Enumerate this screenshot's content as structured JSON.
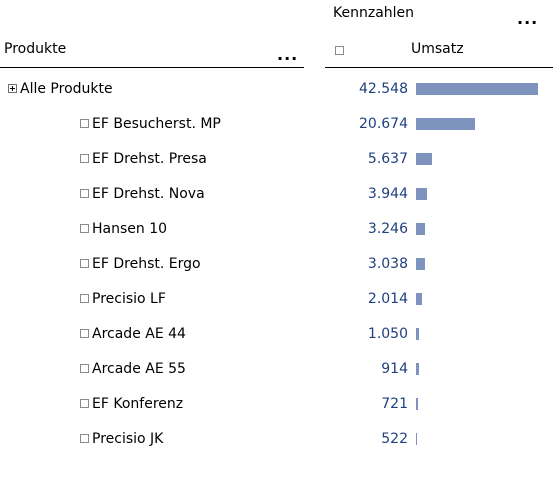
{
  "header": {
    "measures_title": "Kennzahlen",
    "more_menu": "...",
    "dimension_title": "Produkte",
    "dimension_more": "...",
    "measure_label": "Umsatz"
  },
  "colors": {
    "value_text": "#1f3f7f",
    "bar_fill": "#7f93bf"
  },
  "rows": [
    {
      "label": "Alle Produkte",
      "value": "42.548",
      "amount": 42548,
      "expanded": false,
      "level": 0
    },
    {
      "label": "EF Besucherst. MP",
      "value": "20.674",
      "amount": 20674,
      "level": 1
    },
    {
      "label": "EF Drehst. Presa",
      "value": "5.637",
      "amount": 5637,
      "level": 1
    },
    {
      "label": "EF Drehst. Nova",
      "value": "3.944",
      "amount": 3944,
      "level": 1
    },
    {
      "label": "Hansen 10",
      "value": "3.246",
      "amount": 3246,
      "level": 1
    },
    {
      "label": "EF Drehst. Ergo",
      "value": "3.038",
      "amount": 3038,
      "level": 1
    },
    {
      "label": "Precisio LF",
      "value": "2.014",
      "amount": 2014,
      "level": 1
    },
    {
      "label": "Arcade AE 44",
      "value": "1.050",
      "amount": 1050,
      "level": 1
    },
    {
      "label": "Arcade AE 55",
      "value": "914",
      "amount": 914,
      "level": 1
    },
    {
      "label": "EF Konferenz",
      "value": "721",
      "amount": 721,
      "level": 1
    },
    {
      "label": "Precisio JK",
      "value": "522",
      "amount": 522,
      "level": 1
    }
  ]
}
